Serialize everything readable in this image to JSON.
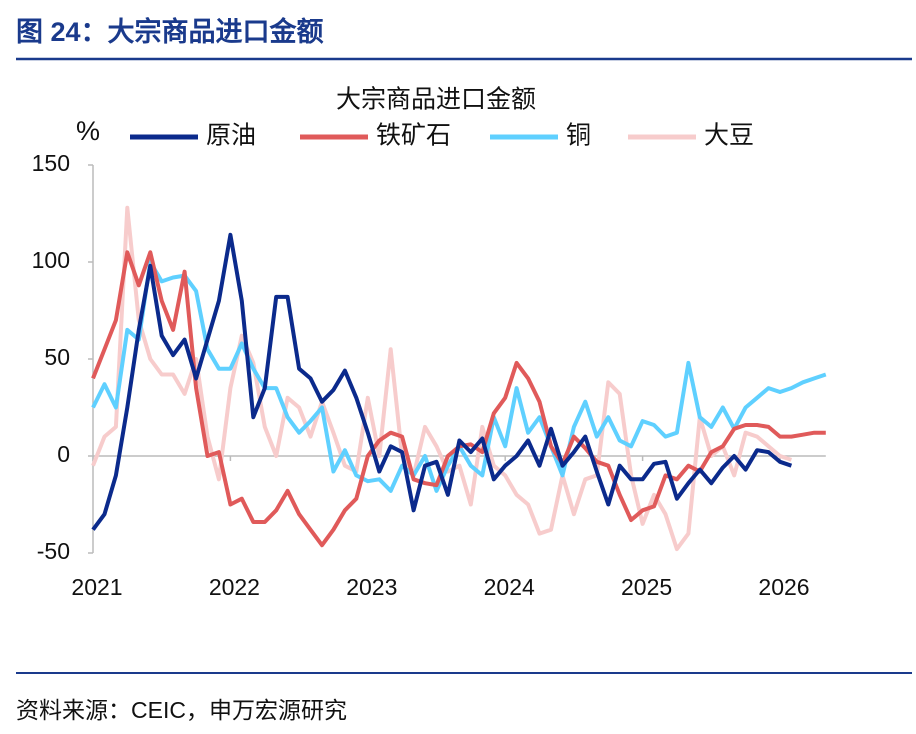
{
  "figure_title": "图 24：大宗商品进口金额",
  "source": "资料来源：CEIC，申万宏源研究",
  "chart_data": {
    "type": "line",
    "title": "大宗商品进口金额",
    "y_label": "%",
    "categories": [
      "2021",
      null,
      null,
      null,
      null,
      null,
      null,
      null,
      null,
      null,
      null,
      null,
      "2022",
      null,
      null,
      null,
      null,
      null,
      null,
      null,
      null,
      null,
      null,
      null,
      "2023",
      null,
      null,
      null,
      null,
      null,
      null,
      null,
      null,
      null,
      null,
      null,
      "2024",
      null,
      null,
      null,
      null,
      null,
      null,
      null,
      null,
      null,
      null,
      null,
      "2025",
      null,
      null,
      null,
      null,
      null,
      null,
      null,
      null,
      null,
      null,
      null,
      "2026",
      null,
      null,
      null,
      null
    ],
    "series": [
      {
        "name": "原油",
        "color": "#0b2a8c",
        "values": [
          -38,
          -30,
          -10,
          25,
          65,
          98,
          62,
          52,
          60,
          40,
          60,
          80,
          114,
          80,
          20,
          35,
          82,
          82,
          45,
          40,
          28,
          34,
          44,
          30,
          12,
          -8,
          5,
          2,
          -28,
          -5,
          -3,
          -20,
          8,
          2,
          9,
          -12,
          -5,
          0,
          8,
          -5,
          14,
          -5,
          2,
          10,
          -8,
          -25,
          -5,
          -12,
          -12,
          -4,
          -3,
          -22,
          -14,
          -7,
          -14,
          -6,
          0,
          -7,
          3,
          2,
          -3,
          -5,
          null,
          null,
          null
        ]
      },
      {
        "name": "铁矿石",
        "color": "#e05a5a",
        "values": [
          40,
          55,
          70,
          105,
          88,
          105,
          80,
          65,
          95,
          35,
          0,
          2,
          -25,
          -22,
          -34,
          -34,
          -28,
          -18,
          -30,
          -38,
          -46,
          -38,
          -28,
          -22,
          0,
          8,
          12,
          10,
          -12,
          -14,
          -15,
          0,
          5,
          6,
          2,
          22,
          30,
          48,
          40,
          28,
          5,
          -4,
          10,
          4,
          -3,
          -5,
          -20,
          -33,
          -28,
          -26,
          -10,
          -12,
          -5,
          -8,
          2,
          5,
          14,
          16,
          16,
          15,
          10,
          10,
          11,
          12,
          12
        ]
      },
      {
        "name": "铜",
        "color": "#5fd0ff",
        "values": [
          25,
          37,
          25,
          65,
          60,
          100,
          90,
          92,
          93,
          85,
          55,
          45,
          45,
          58,
          45,
          35,
          35,
          20,
          12,
          18,
          25,
          -8,
          3,
          -10,
          -13,
          -12,
          -18,
          -5,
          -10,
          0,
          -18,
          -5,
          5,
          -5,
          -10,
          20,
          5,
          35,
          12,
          20,
          5,
          -10,
          15,
          28,
          10,
          20,
          8,
          5,
          18,
          16,
          10,
          12,
          48,
          20,
          15,
          25,
          14,
          25,
          30,
          35,
          33,
          35,
          38,
          40,
          42
        ]
      },
      {
        "name": "大豆",
        "color": "#f7cccc",
        "values": [
          -5,
          10,
          15,
          128,
          70,
          50,
          42,
          42,
          32,
          50,
          10,
          -12,
          35,
          62,
          48,
          15,
          0,
          30,
          25,
          10,
          28,
          12,
          -5,
          -8,
          30,
          0,
          55,
          0,
          -10,
          15,
          5,
          -8,
          -5,
          -25,
          15,
          -5,
          -10,
          -20,
          -25,
          -40,
          -38,
          -10,
          -30,
          -12,
          -10,
          38,
          32,
          -10,
          -35,
          -20,
          -30,
          -48,
          -40,
          20,
          0,
          5,
          -10,
          12,
          10,
          5,
          0,
          -2,
          null,
          null,
          null
        ]
      }
    ],
    "ylim": [
      -50,
      150
    ],
    "yticks": [
      -50,
      0,
      50,
      100,
      150
    ]
  }
}
